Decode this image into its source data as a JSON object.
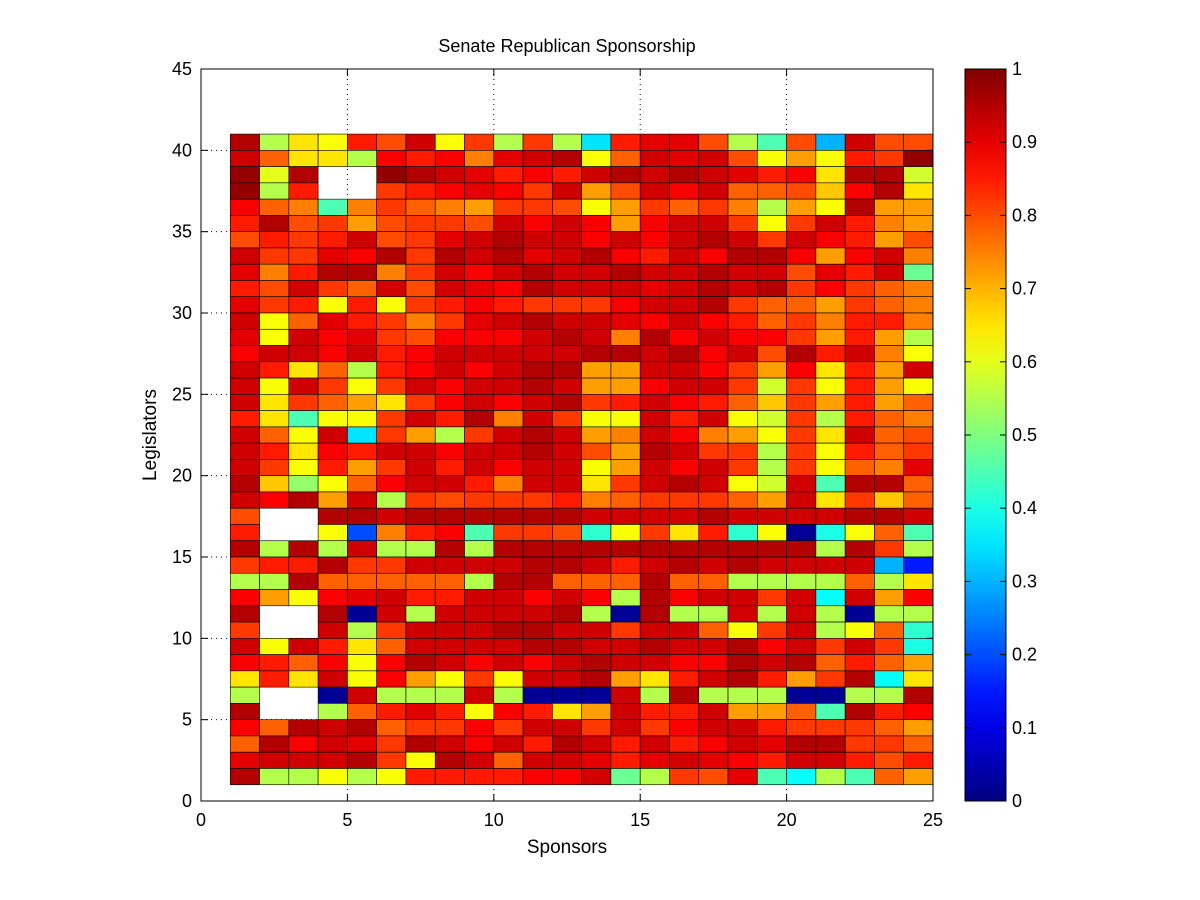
{
  "chart_data": {
    "type": "heatmap",
    "title": "Senate Republican Sponsorship",
    "xlabel": "Sponsors",
    "ylabel": "Legislators",
    "xlim": [
      0,
      25
    ],
    "ylim": [
      0,
      45
    ],
    "xticks": [
      "0",
      "5",
      "10",
      "15",
      "20",
      "25"
    ],
    "yticks": [
      "0",
      "5",
      "10",
      "15",
      "20",
      "25",
      "30",
      "35",
      "40",
      "45"
    ],
    "grid": true,
    "colormap": "jet",
    "colorbar": {
      "min": 0,
      "max": 1,
      "ticks": [
        "0",
        "0.1",
        "0.2",
        "0.3",
        "0.4",
        "0.5",
        "0.6",
        "0.7",
        "0.8",
        "0.9",
        "1"
      ]
    },
    "x_start": 1,
    "y_start": 1,
    "cell_size": 1,
    "rows_top_to_bottom": [
      [
        0.95,
        0.55,
        0.65,
        0.62,
        0.85,
        0.8,
        0.92,
        0.62,
        0.82,
        0.55,
        0.82,
        0.55,
        0.35,
        0.85,
        0.9,
        0.9,
        0.8,
        0.55,
        0.45,
        0.8,
        0.3,
        0.92,
        0.8,
        0.8
      ],
      [
        0.92,
        0.78,
        0.65,
        0.65,
        0.55,
        0.88,
        0.85,
        0.88,
        0.75,
        0.9,
        0.92,
        0.95,
        0.62,
        0.78,
        0.92,
        0.9,
        0.92,
        0.8,
        0.62,
        0.72,
        0.62,
        0.85,
        0.82,
        0.98
      ],
      [
        0.98,
        0.6,
        0.95,
        null,
        null,
        0.98,
        0.95,
        0.92,
        0.9,
        0.85,
        0.88,
        0.85,
        0.92,
        0.95,
        0.92,
        0.95,
        0.92,
        0.9,
        0.85,
        0.88,
        0.65,
        0.95,
        0.95,
        0.58
      ],
      [
        0.98,
        0.55,
        0.85,
        null,
        null,
        0.82,
        0.85,
        0.88,
        0.9,
        0.88,
        0.82,
        0.92,
        0.72,
        0.8,
        0.92,
        0.88,
        0.92,
        0.78,
        0.78,
        0.8,
        0.68,
        0.88,
        0.95,
        0.65
      ],
      [
        0.88,
        0.78,
        0.75,
        0.45,
        0.75,
        0.82,
        0.78,
        0.75,
        0.72,
        0.82,
        0.82,
        0.8,
        0.62,
        0.72,
        0.82,
        0.78,
        0.82,
        0.75,
        0.55,
        0.72,
        0.62,
        0.95,
        0.72,
        0.72
      ],
      [
        0.85,
        0.95,
        0.8,
        0.82,
        0.72,
        0.8,
        0.82,
        0.82,
        0.8,
        0.92,
        0.88,
        0.92,
        0.88,
        0.72,
        0.88,
        0.92,
        0.92,
        0.82,
        0.62,
        0.82,
        0.92,
        0.85,
        0.75,
        0.72
      ],
      [
        0.8,
        0.85,
        0.82,
        0.85,
        0.92,
        0.8,
        0.82,
        0.9,
        0.92,
        0.95,
        0.92,
        0.92,
        0.88,
        0.92,
        0.88,
        0.92,
        0.95,
        0.92,
        0.82,
        0.92,
        0.88,
        0.85,
        0.72,
        0.8
      ],
      [
        0.92,
        0.82,
        0.82,
        0.9,
        0.88,
        0.95,
        0.82,
        0.95,
        0.92,
        0.95,
        0.9,
        0.92,
        0.95,
        0.88,
        0.85,
        0.92,
        0.88,
        0.95,
        0.95,
        0.88,
        0.72,
        0.88,
        0.92,
        0.75
      ],
      [
        0.9,
        0.75,
        0.85,
        0.95,
        0.95,
        0.75,
        0.82,
        0.92,
        0.88,
        0.92,
        0.95,
        0.92,
        0.92,
        0.95,
        0.92,
        0.92,
        0.95,
        0.92,
        0.92,
        0.8,
        0.9,
        0.85,
        0.92,
        0.48
      ],
      [
        0.85,
        0.8,
        0.92,
        0.82,
        0.78,
        0.92,
        0.8,
        0.92,
        0.9,
        0.88,
        0.95,
        0.92,
        0.92,
        0.92,
        0.9,
        0.92,
        0.95,
        0.92,
        0.95,
        0.82,
        0.88,
        0.82,
        0.78,
        0.75
      ],
      [
        0.9,
        0.82,
        0.85,
        0.62,
        0.85,
        0.62,
        0.82,
        0.85,
        0.88,
        0.85,
        0.82,
        0.82,
        0.82,
        0.88,
        0.92,
        0.92,
        0.95,
        0.82,
        0.78,
        0.78,
        0.72,
        0.82,
        0.78,
        0.75
      ],
      [
        0.92,
        0.62,
        0.78,
        0.9,
        0.85,
        0.82,
        0.75,
        0.82,
        0.9,
        0.92,
        0.95,
        0.92,
        0.92,
        0.9,
        0.88,
        0.92,
        0.88,
        0.85,
        0.78,
        0.82,
        0.75,
        0.85,
        0.85,
        0.75
      ],
      [
        0.9,
        0.62,
        0.92,
        0.88,
        0.9,
        0.82,
        0.8,
        0.88,
        0.88,
        0.88,
        0.92,
        0.95,
        0.92,
        0.75,
        0.95,
        0.88,
        0.92,
        0.88,
        0.88,
        0.82,
        0.72,
        0.85,
        0.72,
        0.55
      ],
      [
        0.88,
        0.92,
        0.92,
        0.88,
        0.92,
        0.85,
        0.88,
        0.92,
        0.92,
        0.92,
        0.92,
        0.92,
        0.95,
        0.95,
        0.92,
        0.95,
        0.88,
        0.92,
        0.8,
        0.95,
        0.85,
        0.92,
        0.75,
        0.62
      ],
      [
        0.92,
        0.85,
        0.65,
        0.78,
        0.55,
        0.85,
        0.88,
        0.92,
        0.88,
        0.92,
        0.95,
        0.95,
        0.72,
        0.72,
        0.92,
        0.92,
        0.88,
        0.82,
        0.72,
        0.88,
        0.65,
        0.85,
        0.72,
        0.92
      ],
      [
        0.92,
        0.62,
        0.92,
        0.82,
        0.62,
        0.82,
        0.92,
        0.88,
        0.92,
        0.92,
        0.95,
        0.92,
        0.72,
        0.72,
        0.88,
        0.92,
        0.92,
        0.82,
        0.58,
        0.82,
        0.62,
        0.85,
        0.72,
        0.62
      ],
      [
        0.92,
        0.65,
        0.82,
        0.78,
        0.72,
        0.65,
        0.82,
        0.88,
        0.92,
        0.88,
        0.92,
        0.95,
        0.82,
        0.85,
        0.92,
        0.88,
        0.85,
        0.78,
        0.68,
        0.82,
        0.72,
        0.85,
        0.72,
        0.78
      ],
      [
        0.85,
        0.65,
        0.45,
        0.62,
        0.62,
        0.82,
        0.92,
        0.85,
        0.95,
        0.75,
        0.92,
        0.82,
        0.62,
        0.62,
        0.92,
        0.85,
        0.92,
        0.62,
        0.58,
        0.82,
        0.55,
        0.85,
        0.78,
        0.75
      ],
      [
        0.92,
        0.78,
        0.62,
        0.92,
        0.35,
        0.82,
        0.72,
        0.55,
        0.82,
        0.92,
        0.95,
        0.92,
        0.72,
        0.75,
        0.92,
        0.88,
        0.75,
        0.72,
        0.62,
        0.82,
        0.65,
        0.92,
        0.78,
        0.8
      ],
      [
        0.92,
        0.85,
        0.65,
        0.88,
        0.85,
        0.92,
        0.92,
        0.88,
        0.92,
        0.92,
        0.95,
        0.92,
        0.8,
        0.72,
        0.95,
        0.92,
        0.82,
        0.82,
        0.55,
        0.82,
        0.62,
        0.85,
        0.78,
        0.82
      ],
      [
        0.92,
        0.82,
        0.62,
        0.85,
        0.72,
        0.82,
        0.92,
        0.85,
        0.92,
        0.88,
        0.92,
        0.92,
        0.62,
        0.72,
        0.92,
        0.88,
        0.92,
        0.82,
        0.55,
        0.82,
        0.62,
        0.78,
        0.75,
        0.9
      ],
      [
        0.95,
        0.68,
        0.52,
        0.62,
        0.78,
        0.88,
        0.92,
        0.92,
        0.85,
        0.75,
        0.92,
        0.92,
        0.65,
        0.82,
        0.92,
        0.95,
        0.92,
        0.62,
        0.58,
        0.92,
        0.45,
        0.95,
        0.95,
        0.78
      ],
      [
        0.92,
        0.88,
        0.95,
        0.72,
        0.92,
        0.55,
        0.82,
        0.8,
        0.82,
        0.82,
        0.82,
        0.85,
        0.75,
        0.78,
        0.82,
        0.82,
        0.82,
        0.78,
        0.72,
        0.92,
        0.65,
        0.82,
        0.68,
        0.78
      ],
      [
        0.8,
        null,
        null,
        0.95,
        0.95,
        0.92,
        0.95,
        0.95,
        0.95,
        0.95,
        0.95,
        0.95,
        0.92,
        0.92,
        0.92,
        0.92,
        0.95,
        0.92,
        0.92,
        0.92,
        0.92,
        0.95,
        0.95,
        0.92
      ],
      [
        0.85,
        null,
        null,
        0.62,
        0.2,
        0.75,
        0.85,
        0.88,
        0.45,
        0.82,
        0.82,
        0.8,
        0.42,
        0.62,
        0.82,
        0.65,
        0.85,
        0.42,
        0.62,
        0.02,
        0.4,
        0.62,
        0.78,
        0.45
      ],
      [
        0.95,
        0.55,
        0.95,
        0.55,
        0.92,
        0.55,
        0.55,
        0.95,
        0.55,
        0.95,
        0.95,
        0.95,
        0.95,
        0.95,
        0.95,
        0.95,
        0.95,
        0.95,
        0.95,
        0.95,
        0.55,
        0.95,
        0.82,
        0.55
      ],
      [
        0.82,
        0.85,
        0.85,
        0.95,
        0.82,
        0.82,
        0.92,
        0.92,
        0.92,
        0.92,
        0.95,
        0.95,
        0.92,
        0.85,
        0.92,
        0.95,
        0.92,
        0.95,
        0.92,
        0.92,
        0.92,
        0.92,
        0.3,
        0.15
      ],
      [
        0.55,
        0.55,
        0.95,
        0.78,
        0.78,
        0.78,
        0.78,
        0.78,
        0.55,
        0.95,
        0.95,
        0.78,
        0.78,
        0.78,
        0.95,
        0.78,
        0.78,
        0.55,
        0.55,
        0.55,
        0.55,
        0.78,
        0.55,
        0.65
      ],
      [
        0.88,
        0.72,
        0.62,
        0.88,
        0.9,
        0.92,
        0.85,
        0.85,
        0.92,
        0.92,
        0.88,
        0.92,
        0.88,
        0.55,
        0.95,
        0.88,
        0.92,
        0.92,
        0.82,
        0.92,
        0.38,
        0.92,
        0.72,
        0.88
      ],
      [
        0.95,
        null,
        null,
        0.95,
        0.02,
        0.92,
        0.55,
        0.92,
        0.92,
        0.92,
        0.92,
        0.95,
        0.55,
        0.02,
        0.95,
        0.55,
        0.55,
        0.92,
        0.55,
        0.92,
        0.55,
        0.02,
        0.55,
        0.55
      ],
      [
        0.82,
        null,
        null,
        0.92,
        0.55,
        0.82,
        0.92,
        0.92,
        0.92,
        0.95,
        0.95,
        0.92,
        0.92,
        0.82,
        0.92,
        0.92,
        0.78,
        0.62,
        0.82,
        0.92,
        0.55,
        0.62,
        0.78,
        0.42
      ],
      [
        0.92,
        0.62,
        0.92,
        0.85,
        0.65,
        0.78,
        0.92,
        0.92,
        0.92,
        0.92,
        0.95,
        0.95,
        0.92,
        0.92,
        0.95,
        0.92,
        0.92,
        0.95,
        0.88,
        0.92,
        0.82,
        0.92,
        0.82,
        0.4
      ],
      [
        0.88,
        0.85,
        0.78,
        0.88,
        0.62,
        0.88,
        0.95,
        0.92,
        0.88,
        0.92,
        0.88,
        0.92,
        0.95,
        0.92,
        0.92,
        0.88,
        0.88,
        0.95,
        0.92,
        0.95,
        0.78,
        0.85,
        0.78,
        0.72
      ],
      [
        0.65,
        0.85,
        0.65,
        0.92,
        0.62,
        0.88,
        0.72,
        0.62,
        0.82,
        0.62,
        0.92,
        0.92,
        0.95,
        0.72,
        0.65,
        0.85,
        0.92,
        0.95,
        0.85,
        0.72,
        0.82,
        0.95,
        0.38,
        0.65
      ],
      [
        0.55,
        null,
        null,
        0.02,
        0.92,
        0.55,
        0.55,
        0.55,
        0.92,
        0.55,
        0.02,
        0.02,
        0.02,
        0.92,
        0.55,
        0.95,
        0.55,
        0.55,
        0.55,
        0.02,
        0.02,
        0.55,
        0.55,
        0.95
      ],
      [
        0.95,
        null,
        null,
        0.55,
        0.78,
        0.85,
        0.9,
        0.85,
        0.62,
        0.88,
        0.85,
        0.65,
        0.72,
        0.92,
        0.85,
        0.85,
        0.92,
        0.72,
        0.72,
        0.78,
        0.45,
        0.95,
        0.85,
        0.88
      ],
      [
        0.88,
        0.78,
        0.95,
        0.92,
        0.95,
        0.78,
        0.82,
        0.82,
        0.88,
        0.82,
        0.92,
        0.92,
        0.82,
        0.92,
        0.82,
        0.88,
        0.92,
        0.92,
        0.85,
        0.82,
        0.82,
        0.82,
        0.78,
        0.72
      ],
      [
        0.78,
        0.95,
        0.88,
        0.92,
        0.9,
        0.82,
        0.95,
        0.92,
        0.88,
        0.92,
        0.85,
        0.95,
        0.92,
        0.85,
        0.92,
        0.85,
        0.88,
        0.92,
        0.9,
        0.95,
        0.95,
        0.82,
        0.82,
        0.78
      ],
      [
        0.9,
        0.92,
        0.92,
        0.92,
        0.95,
        0.82,
        0.62,
        0.95,
        0.92,
        0.78,
        0.92,
        0.92,
        0.9,
        0.85,
        0.9,
        0.92,
        0.9,
        0.88,
        0.85,
        0.92,
        0.92,
        0.85,
        0.8,
        0.85
      ],
      [
        0.95,
        0.55,
        0.55,
        0.62,
        0.55,
        0.62,
        0.85,
        0.85,
        0.85,
        0.85,
        0.88,
        0.88,
        0.92,
        0.48,
        0.55,
        0.82,
        0.8,
        0.9,
        0.45,
        0.38,
        0.55,
        0.45,
        0.78,
        0.72
      ]
    ]
  }
}
